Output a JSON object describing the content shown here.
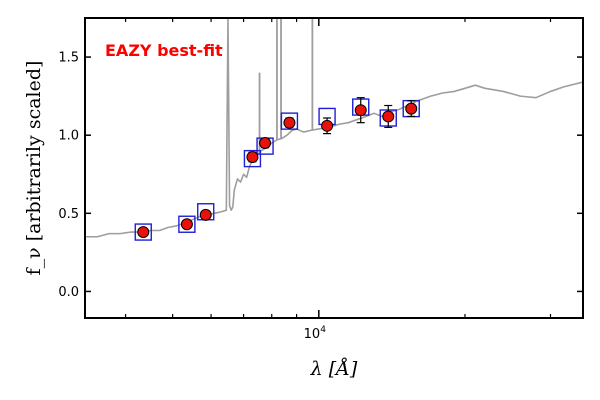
{
  "chart_data": {
    "type": "scatter",
    "annotation": "EAZY best-fit",
    "xlabel": "λ [Å]",
    "ylabel": "f_ν [arbitrarily scaled]",
    "xscale": "log",
    "xlim": [
      3300,
      35000
    ],
    "ylim": [
      -0.17,
      1.75
    ],
    "yticks": [
      {
        "value": 0.0,
        "label": "0.0"
      },
      {
        "value": 0.5,
        "label": "0.5"
      },
      {
        "value": 1.0,
        "label": "1.0"
      },
      {
        "value": 1.5,
        "label": "1.5"
      }
    ],
    "xticks_major": [
      {
        "value": 10000,
        "base": "10",
        "exp": "4"
      }
    ],
    "xticks_minor": [
      4000,
      5000,
      6000,
      7000,
      8000,
      9000,
      20000,
      30000
    ],
    "colors": {
      "model": "#9e9e9e",
      "photometry_fill": "#e8120c",
      "model_photometry": "#1f1fd6",
      "annotation": "#ff0000"
    },
    "series": [
      {
        "name": "observed photometry",
        "style": "red-circles-with-errorbars",
        "x": [
          4350,
          5350,
          5850,
          7300,
          7750,
          8700,
          10400,
          12200,
          13900,
          15500
        ],
        "y": [
          0.38,
          0.43,
          0.49,
          0.86,
          0.95,
          1.08,
          1.06,
          1.16,
          1.12,
          1.17
        ],
        "yerr": [
          0.02,
          0.02,
          0.02,
          0.03,
          0.03,
          0.03,
          0.05,
          0.08,
          0.07,
          0.05
        ]
      },
      {
        "name": "model photometry",
        "style": "blue-open-squares",
        "x": [
          4350,
          5350,
          5850,
          7300,
          7750,
          8700,
          10400,
          12200,
          13900,
          15500
        ],
        "y": [
          0.38,
          0.43,
          0.51,
          0.85,
          0.93,
          1.09,
          1.12,
          1.18,
          1.11,
          1.17
        ]
      },
      {
        "name": "EAZY best-fit template",
        "style": "gray-line",
        "x": [
          3300,
          3500,
          3700,
          3900,
          4100,
          4300,
          4500,
          4700,
          4900,
          5100,
          5300,
          5500,
          5700,
          5900,
          6100,
          6300,
          6450,
          6500,
          6550,
          6600,
          6650,
          6700,
          6800,
          6900,
          7000,
          7100,
          7200,
          7300,
          7400,
          7600,
          7800,
          8000,
          8200,
          8400,
          8600,
          8800,
          9000,
          9300,
          9600,
          10000,
          10500,
          11000,
          11500,
          12000,
          12500,
          13000,
          13500,
          14000,
          14500,
          15000,
          15500,
          16000,
          17000,
          18000,
          19000,
          20000,
          21000,
          22000,
          24000,
          26000,
          28000,
          30000,
          32000,
          35000
        ],
        "y": [
          0.35,
          0.35,
          0.37,
          0.37,
          0.38,
          0.38,
          0.39,
          0.39,
          0.41,
          0.42,
          0.44,
          0.46,
          0.48,
          0.49,
          0.5,
          0.51,
          0.52,
          1.75,
          0.55,
          0.52,
          0.54,
          0.65,
          0.72,
          0.7,
          0.75,
          0.73,
          0.8,
          0.84,
          0.86,
          0.9,
          0.92,
          0.95,
          0.97,
          0.98,
          1.0,
          1.03,
          1.04,
          1.02,
          1.03,
          1.04,
          1.05,
          1.07,
          1.08,
          1.1,
          1.12,
          1.14,
          1.12,
          1.15,
          1.16,
          1.18,
          1.2,
          1.22,
          1.25,
          1.27,
          1.28,
          1.3,
          1.32,
          1.3,
          1.28,
          1.25,
          1.24,
          1.28,
          1.31,
          1.34
        ]
      }
    ],
    "emission_lines": [
      {
        "x": 8200,
        "y": 1.75
      },
      {
        "x": 8360,
        "y": 1.75
      },
      {
        "x": 9700,
        "y": 1.75
      },
      {
        "x": 7550,
        "y": 1.4
      }
    ]
  }
}
